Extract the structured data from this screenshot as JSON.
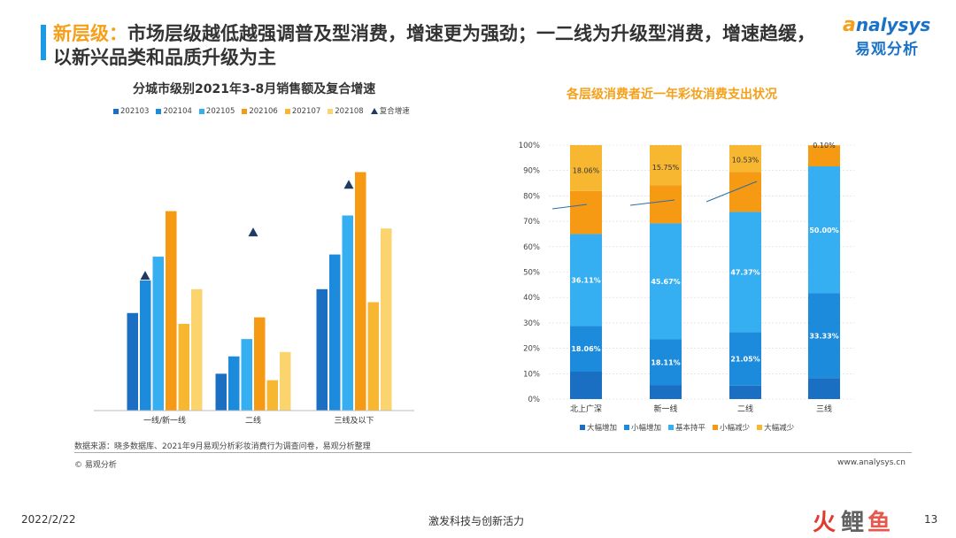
{
  "header": {
    "title_highlight": "新层级：",
    "title_rest": "市场层级越低越强调普及型消费，增速更为强劲；一二线为升级型消费，增速趋缓，以新兴品类和品质升级为主",
    "logo_en": "nalysys",
    "logo_cn": "易观分析"
  },
  "chart_data": [
    {
      "type": "bar",
      "title": "分城市级别2021年3-8月销售额及复合增速",
      "categories": [
        "一线/新一线",
        "二线",
        "三线及以下"
      ],
      "series": [
        {
          "name": "202103",
          "color": "#1a6fc2",
          "values": [
            45,
            17,
            56
          ]
        },
        {
          "name": "202104",
          "color": "#1c8bdb",
          "values": [
            60,
            25,
            72
          ]
        },
        {
          "name": "202105",
          "color": "#35aef2",
          "values": [
            71,
            33,
            90
          ]
        },
        {
          "name": "202106",
          "color": "#f59a12",
          "values": [
            92,
            43,
            110
          ]
        },
        {
          "name": "202107",
          "color": "#f7b731",
          "values": [
            40,
            14,
            50
          ]
        },
        {
          "name": "202108",
          "color": "#fbd46d",
          "values": [
            56,
            27,
            84
          ]
        }
      ],
      "cagr_marker": {
        "name": "复合增速",
        "color": "#1f3b63",
        "values": [
          62,
          82,
          104
        ]
      },
      "ylim": [
        0,
        120
      ],
      "grid": false,
      "legend_placement": "top"
    },
    {
      "type": "bar",
      "stacked": true,
      "title": "各层级消费者近一年彩妆消费支出状况",
      "categories": [
        "北上广深",
        "新一线",
        "二线",
        "三线"
      ],
      "y_ticks": [
        "0%",
        "10%",
        "20%",
        "30%",
        "40%",
        "50%",
        "60%",
        "70%",
        "80%",
        "90%",
        "100%"
      ],
      "ylim": [
        0,
        100
      ],
      "series": [
        {
          "name": "大幅增加",
          "color": "#1a6fc2",
          "values": [
            10.8,
            5.4,
            5.3,
            8.3
          ]
        },
        {
          "name": "小幅增加",
          "color": "#1c8bdb",
          "values": [
            18.06,
            18.11,
            21.05,
            33.33
          ]
        },
        {
          "name": "基本持平",
          "color": "#35aef2",
          "values": [
            36.11,
            45.67,
            47.37,
            50.0
          ]
        },
        {
          "name": "小幅减少",
          "color": "#f59a12",
          "values": [
            16.97,
            15.07,
            15.75,
            8.27
          ]
        },
        {
          "name": "大幅减少",
          "color": "#f7b731",
          "values": [
            18.06,
            15.75,
            10.53,
            0.1
          ]
        }
      ],
      "data_labels": [
        {
          "category_index": 0,
          "series_index": 1,
          "text": "18.06%"
        },
        {
          "category_index": 0,
          "series_index": 2,
          "text": "36.11%"
        },
        {
          "category_index": 0,
          "series_index": 4,
          "text": "18.06%"
        },
        {
          "category_index": 1,
          "series_index": 1,
          "text": "18.11%"
        },
        {
          "category_index": 1,
          "series_index": 2,
          "text": "45.67%"
        },
        {
          "category_index": 1,
          "series_index": 4,
          "text": "15.75%"
        },
        {
          "category_index": 2,
          "series_index": 1,
          "text": "21.05%"
        },
        {
          "category_index": 2,
          "series_index": 2,
          "text": "47.37%"
        },
        {
          "category_index": 2,
          "series_index": 4,
          "text": "10.53%"
        },
        {
          "category_index": 3,
          "series_index": 1,
          "text": "33.33%"
        },
        {
          "category_index": 3,
          "series_index": 2,
          "text": "50.00%"
        },
        {
          "category_index": 3,
          "series_index": 4,
          "text": "0.10%"
        }
      ],
      "legend_placement": "bottom"
    }
  ],
  "footer": {
    "source": "数据来源：晓多数据库、2021年9月易观分析彩妆消费行为调查问卷，易观分析整理",
    "copyright": "© 易观分析",
    "url": "www.analysys.cn",
    "date": "2022/2/22",
    "center_text": "激发科技与创新活力",
    "page_number": "13",
    "watermark_brand": "火鲤鱼"
  }
}
